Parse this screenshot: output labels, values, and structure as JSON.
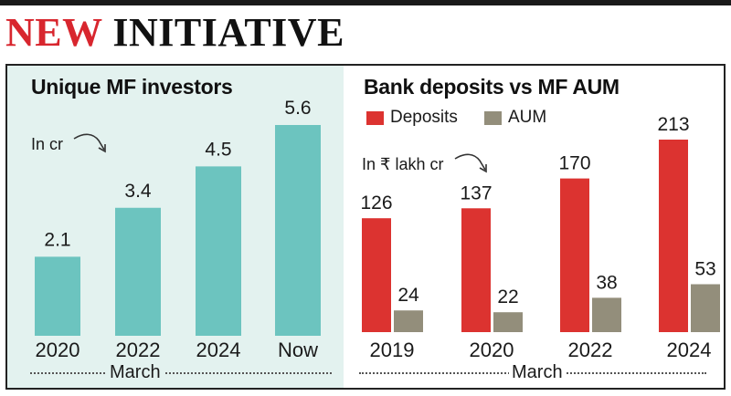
{
  "headline": {
    "part1": "NEW ",
    "part2": "INITIATIVE"
  },
  "colors": {
    "headline_accent": "#d8262e",
    "investors_bar": "#6cc4bf",
    "deposits": "#dc3330",
    "aum": "#938e7b",
    "left_panel_bg": "#e3f2ef"
  },
  "chart_data": [
    {
      "type": "bar",
      "title": "Unique MF investors",
      "unit_note": "In cr",
      "categories": [
        "2020",
        "2022",
        "2024",
        "Now"
      ],
      "values": [
        2.1,
        3.4,
        4.5,
        5.6
      ],
      "value_labels": [
        "2.1",
        "3.4",
        "4.5",
        "5.6"
      ],
      "xlabel": "March",
      "ylim": [
        0,
        5.6
      ]
    },
    {
      "type": "bar",
      "title": "Bank deposits vs MF AUM",
      "unit_note": "In ₹ lakh cr",
      "categories": [
        "2019",
        "2020",
        "2022",
        "2024"
      ],
      "series": [
        {
          "name": "Deposits",
          "values": [
            126,
            137,
            170,
            213
          ]
        },
        {
          "name": "AUM",
          "values": [
            24,
            22,
            38,
            53
          ]
        }
      ],
      "xlabel": "March",
      "legend": "top-left",
      "ylim": [
        0,
        213
      ]
    }
  ]
}
